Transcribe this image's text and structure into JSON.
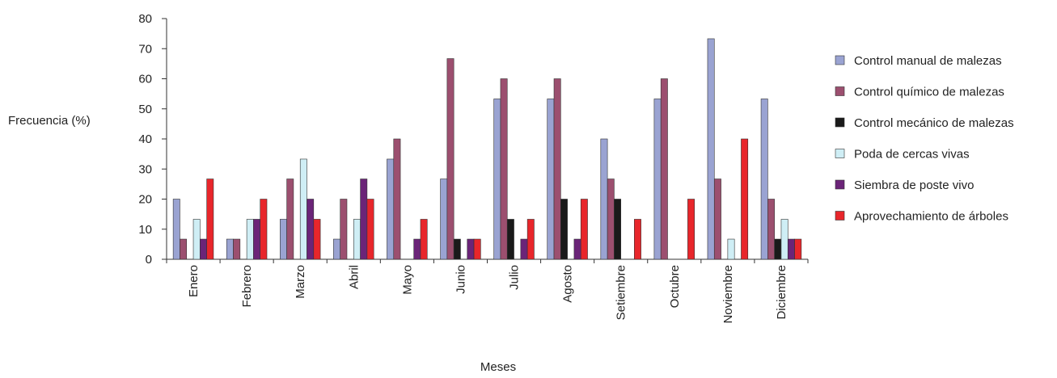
{
  "chart_data": {
    "type": "bar",
    "title": "",
    "xlabel": "Meses",
    "ylabel": "Frecuencia (%)",
    "ylim": [
      0,
      80
    ],
    "yticks": [
      0,
      10,
      20,
      30,
      40,
      50,
      60,
      70,
      80
    ],
    "legend_position": "right",
    "grid": false,
    "categories": [
      "Enero",
      "Febrero",
      "Marzo",
      "Abril",
      "Mayo",
      "Junio",
      "Julio",
      "Agosto",
      "Setiembre",
      "Octubre",
      "Noviembre",
      "Diciembre"
    ],
    "series": [
      {
        "name": "Control manual de malezas",
        "color": "#9aa3d2",
        "values": [
          20,
          6.7,
          13.3,
          6.7,
          33.3,
          26.7,
          53.3,
          53.3,
          40,
          53.3,
          73.3,
          53.3
        ]
      },
      {
        "name": "Control químico de malezas",
        "color": "#9c4f6f",
        "values": [
          6.7,
          6.7,
          26.7,
          20,
          40,
          66.7,
          60,
          60,
          26.7,
          60,
          26.7,
          20
        ]
      },
      {
        "name": "Control mecánico de malezas",
        "color": "#1a1a1a",
        "values": [
          0,
          0,
          0,
          0,
          0,
          6.7,
          13.3,
          20,
          20,
          0,
          0,
          6.7
        ]
      },
      {
        "name": "Poda de cercas vivas",
        "color": "#cfeef5",
        "values": [
          13.3,
          13.3,
          33.3,
          13.3,
          0,
          0,
          0,
          0,
          0,
          0,
          6.7,
          13.3
        ]
      },
      {
        "name": "Siembra de poste vivo",
        "color": "#6b2478",
        "values": [
          6.7,
          13.3,
          20,
          26.7,
          6.7,
          6.7,
          6.7,
          6.7,
          0,
          0,
          0,
          6.7
        ]
      },
      {
        "name": "Aprovechamiento de árboles",
        "color": "#e8262b",
        "values": [
          26.7,
          20,
          13.3,
          20,
          13.3,
          6.7,
          13.3,
          20,
          13.3,
          20,
          40,
          6.7
        ]
      }
    ]
  }
}
